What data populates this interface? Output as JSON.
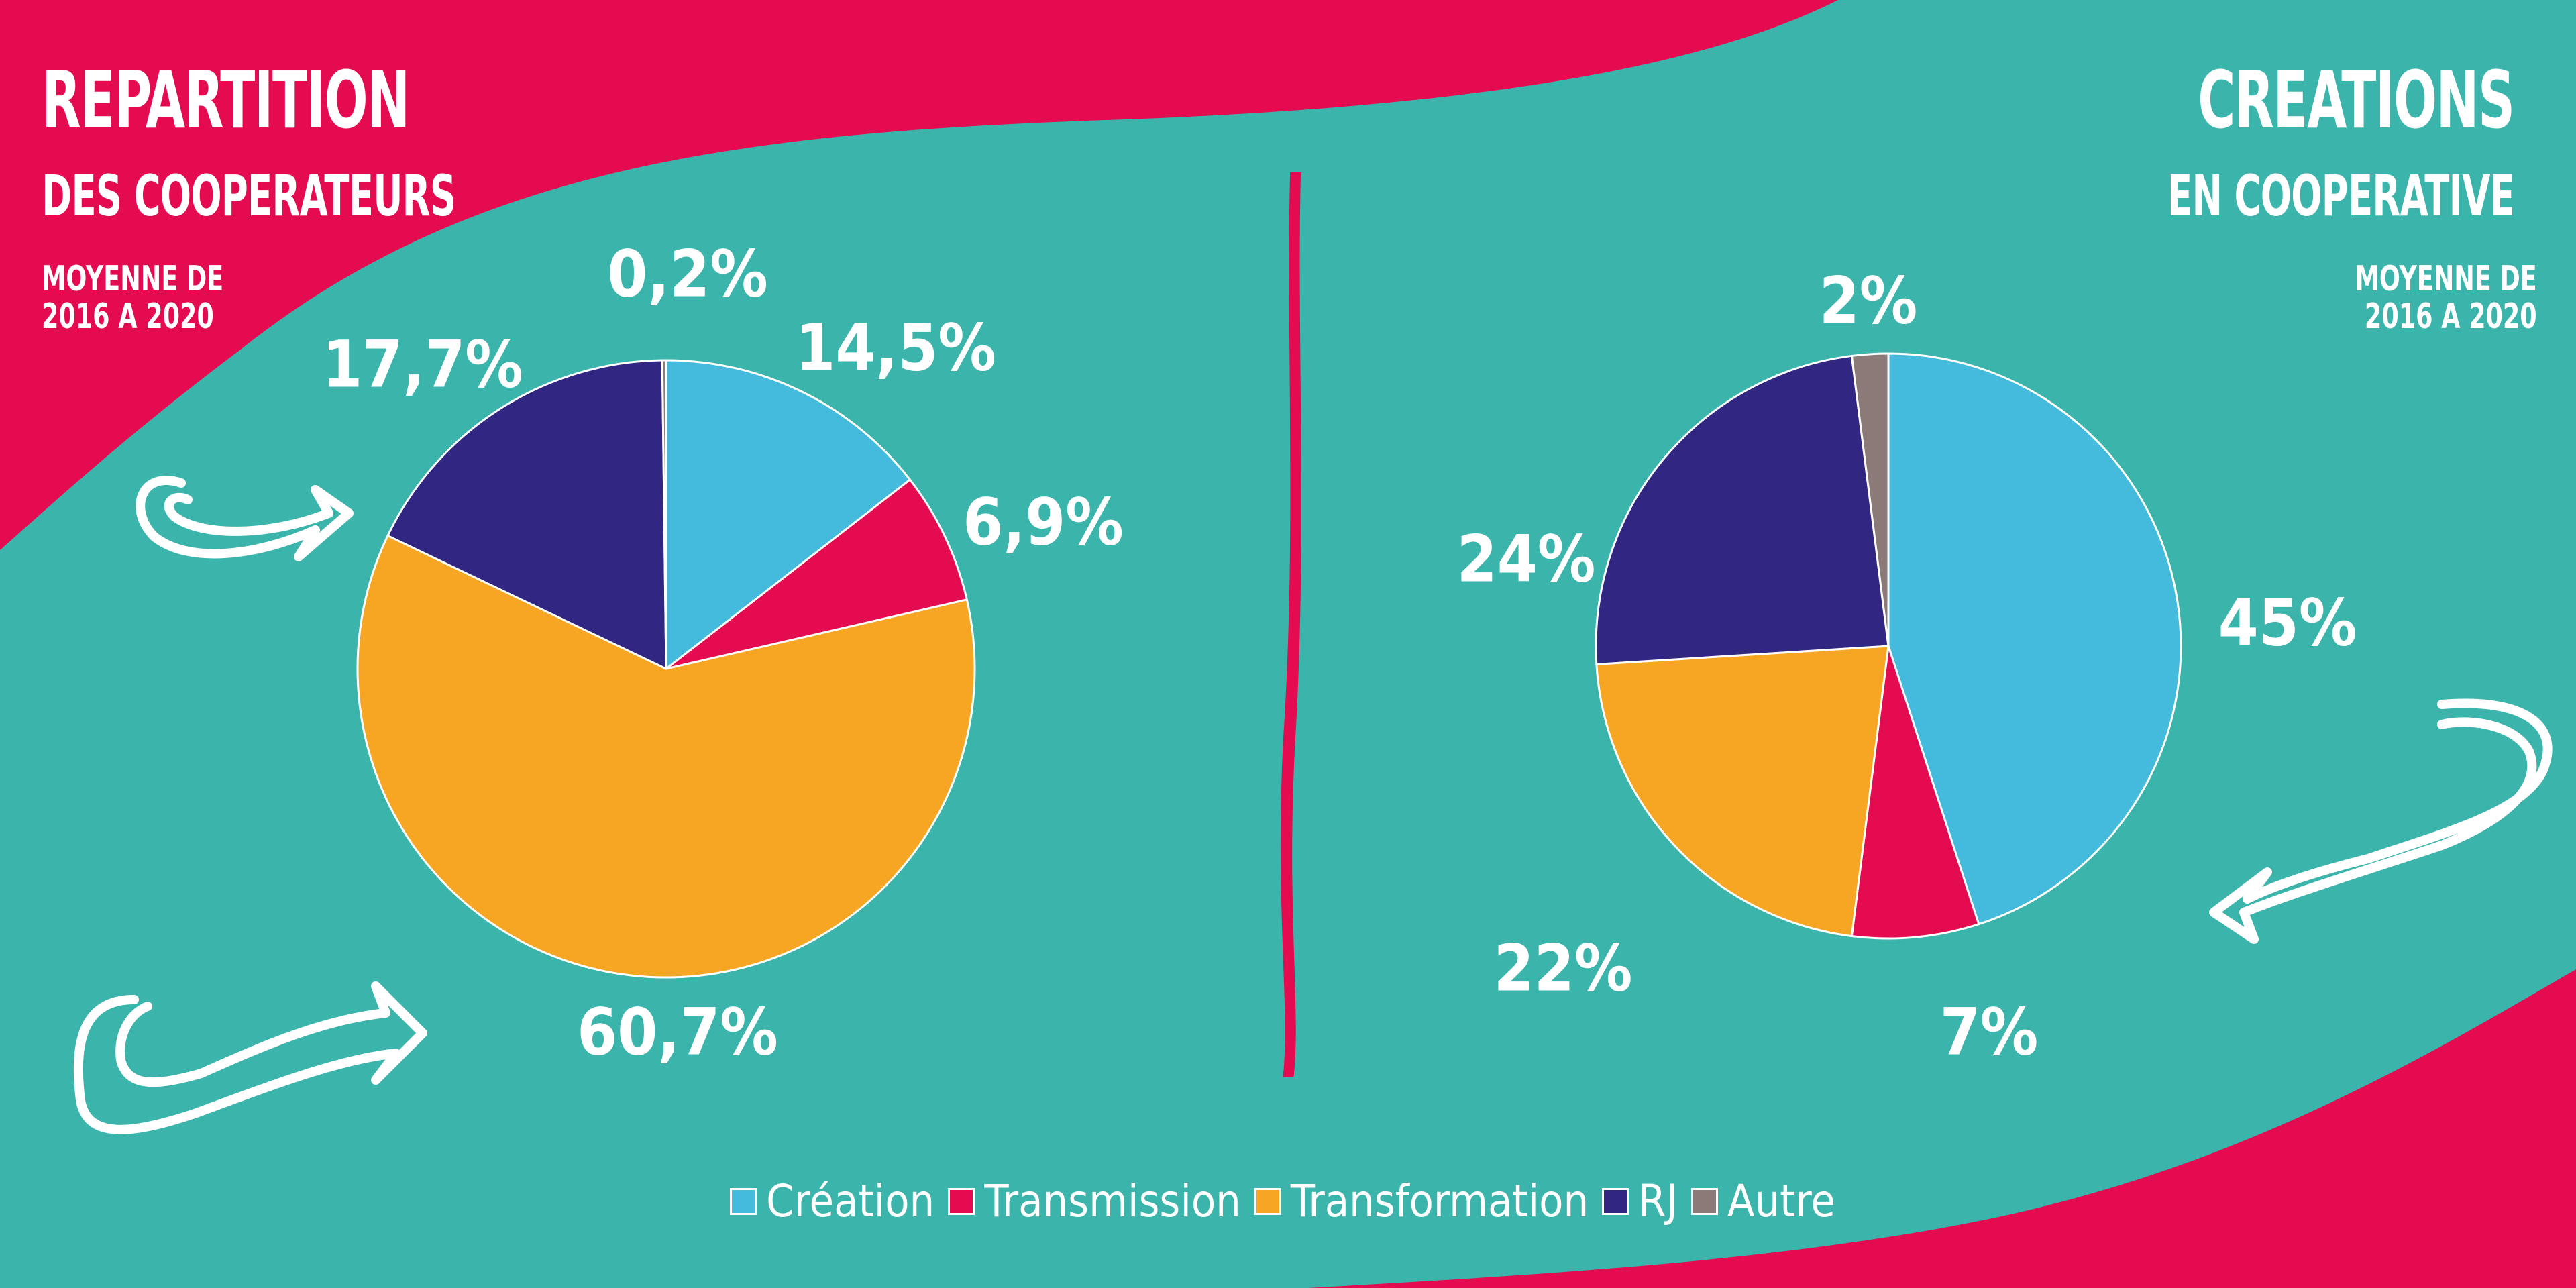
{
  "colors": {
    "background": "#3bb5ab",
    "accent": "#e40b50",
    "text": "#ffffff"
  },
  "left": {
    "title": "REPARTITION",
    "subtitle": "DES COOPERATEURS",
    "period_line1": "MOYENNE DE",
    "period_line2": "2016 A 2020"
  },
  "right": {
    "title": "CREATIONS",
    "subtitle": "EN COOPERATIVE",
    "period_line1": "MOYENNE DE",
    "period_line2": "2016 A 2020"
  },
  "legend": [
    {
      "label": "Création",
      "color": "#44bbdc"
    },
    {
      "label": "Transmission",
      "color": "#e40b50"
    },
    {
      "label": "Transformation",
      "color": "#f6a623"
    },
    {
      "label": "RJ",
      "color": "#312782"
    },
    {
      "label": "Autre",
      "color": "#8b7a78"
    }
  ],
  "chart_data": [
    {
      "type": "pie",
      "title": "REPARTITION DES COOPERATEURS",
      "subtitle": "MOYENNE DE 2016 A 2020",
      "categories": [
        "Création",
        "Transmission",
        "Transformation",
        "RJ",
        "Autre"
      ],
      "values": [
        14.5,
        6.9,
        60.7,
        17.7,
        0.2
      ],
      "labels": [
        "14,5%",
        "6,9%",
        "60,7%",
        "17,7%",
        "0,2%"
      ],
      "colors": [
        "#44bbdc",
        "#e40b50",
        "#f6a623",
        "#312782",
        "#8b7a78"
      ],
      "start": "12 o'clock",
      "direction": "clockwise"
    },
    {
      "type": "pie",
      "title": "CREATIONS EN COOPERATIVE",
      "subtitle": "MOYENNE DE 2016 A 2020",
      "categories": [
        "Création",
        "Transmission",
        "Transformation",
        "RJ",
        "Autre"
      ],
      "values": [
        45,
        7,
        22,
        24,
        2
      ],
      "labels": [
        "45%",
        "7%",
        "22%",
        "24%",
        "2%"
      ],
      "colors": [
        "#44bbdc",
        "#e40b50",
        "#f6a623",
        "#312782",
        "#8b7a78"
      ],
      "start": "12 o'clock",
      "direction": "clockwise"
    }
  ]
}
